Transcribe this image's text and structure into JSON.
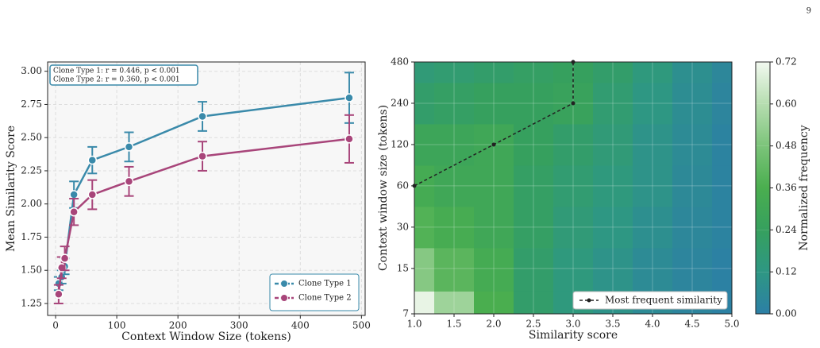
{
  "page_number": "9",
  "chart_data": [
    {
      "type": "line",
      "xlabel": "Context Window Size (tokens)",
      "ylabel": "Mean Similarity Score",
      "x": [
        5,
        10,
        15,
        30,
        60,
        120,
        240,
        480
      ],
      "series": [
        {
          "name": "Clone Type 1",
          "color": "#3a8aaa",
          "values": [
            1.4,
            1.45,
            1.53,
            2.07,
            2.33,
            2.43,
            2.66,
            2.8
          ],
          "errors": [
            0.05,
            0.05,
            0.06,
            0.1,
            0.1,
            0.11,
            0.11,
            0.19
          ]
        },
        {
          "name": "Clone Type 2",
          "color": "#a8457a",
          "values": [
            1.32,
            1.52,
            1.59,
            1.94,
            2.07,
            2.17,
            2.36,
            2.49
          ],
          "errors": [
            0.07,
            0.08,
            0.09,
            0.1,
            0.11,
            0.11,
            0.11,
            0.18
          ]
        }
      ],
      "annotations": [
        "Clone Type 1: r = 0.446, p < 0.001",
        "Clone Type 2: r = 0.360, p < 0.001"
      ],
      "xlim": [
        -13,
        506
      ],
      "xticks": [
        0,
        100,
        200,
        300,
        400,
        500
      ],
      "ylim": [
        1.16,
        3.07
      ],
      "yticks": [
        {
          "value": 1.25,
          "label": "1.25"
        },
        {
          "value": 1.5,
          "label": "1.50"
        },
        {
          "value": 1.75,
          "label": "1.75"
        },
        {
          "value": 2.0,
          "label": "2.00"
        },
        {
          "value": 2.25,
          "label": "2.25"
        },
        {
          "value": 2.5,
          "label": "2.50"
        },
        {
          "value": 2.75,
          "label": "2.75"
        },
        {
          "value": 3.0,
          "label": "3.00"
        }
      ],
      "grid": true,
      "legend": "lower right"
    },
    {
      "type": "contour",
      "xlabel": "Similarity score",
      "ylabel": "Context window size (tokens)",
      "colorbar_label": "Normalized frequency",
      "x": [
        1.0,
        1.5,
        2.0,
        2.5,
        3.0,
        3.5,
        4.0,
        4.5,
        5.0
      ],
      "y": [
        7,
        15,
        30,
        60,
        120,
        240,
        480
      ],
      "z": [
        [
          0.7,
          0.55,
          0.36,
          0.2,
          0.14,
          0.1,
          0.06,
          0.03,
          0.01
        ],
        [
          0.5,
          0.4,
          0.33,
          0.2,
          0.14,
          0.1,
          0.06,
          0.03,
          0.01
        ],
        [
          0.38,
          0.34,
          0.3,
          0.22,
          0.16,
          0.12,
          0.08,
          0.04,
          0.02
        ],
        [
          0.33,
          0.3,
          0.3,
          0.22,
          0.18,
          0.14,
          0.1,
          0.05,
          0.02
        ],
        [
          0.28,
          0.28,
          0.3,
          0.24,
          0.2,
          0.16,
          0.1,
          0.06,
          0.02
        ],
        [
          0.2,
          0.22,
          0.24,
          0.24,
          0.26,
          0.18,
          0.12,
          0.07,
          0.03
        ],
        [
          0.16,
          0.18,
          0.2,
          0.22,
          0.24,
          0.2,
          0.14,
          0.08,
          0.04
        ]
      ],
      "xlim": [
        1.0,
        5.0
      ],
      "xticks": [
        {
          "value": 1.0,
          "label": "1.0"
        },
        {
          "value": 1.5,
          "label": "1.5"
        },
        {
          "value": 2.0,
          "label": "2.0"
        },
        {
          "value": 2.5,
          "label": "2.5"
        },
        {
          "value": 3.0,
          "label": "3.0"
        },
        {
          "value": 3.5,
          "label": "3.5"
        },
        {
          "value": 4.0,
          "label": "4.0"
        },
        {
          "value": 4.5,
          "label": "4.5"
        },
        {
          "value": 5.0,
          "label": "5.0"
        }
      ],
      "ylim": [
        7,
        480
      ],
      "yticks": [
        7,
        15,
        30,
        60,
        120,
        240,
        480
      ],
      "log_y": true,
      "colorbar": {
        "lim": [
          0,
          0.72
        ],
        "ticks": [
          {
            "value": 0,
            "label": "0.00"
          },
          {
            "value": 0.12,
            "label": "0.12"
          },
          {
            "value": 0.24,
            "label": "0.24"
          },
          {
            "value": 0.36,
            "label": "0.36"
          },
          {
            "value": 0.48,
            "label": "0.48"
          },
          {
            "value": 0.6,
            "label": "0.60"
          },
          {
            "value": 0.72,
            "label": "0.72"
          }
        ],
        "colors": [
          "#2c7fa6",
          "#2e9783",
          "#36a05e",
          "#4aae4f",
          "#7cc47a",
          "#b6ddb0",
          "#f2f9f0"
        ]
      },
      "line": {
        "name": "Most frequent similarity",
        "color": "#222222",
        "x": [
          1.0,
          2.0,
          3.0,
          3.0
        ],
        "y": [
          60,
          120,
          240,
          480
        ]
      },
      "legend": "lower right"
    }
  ]
}
